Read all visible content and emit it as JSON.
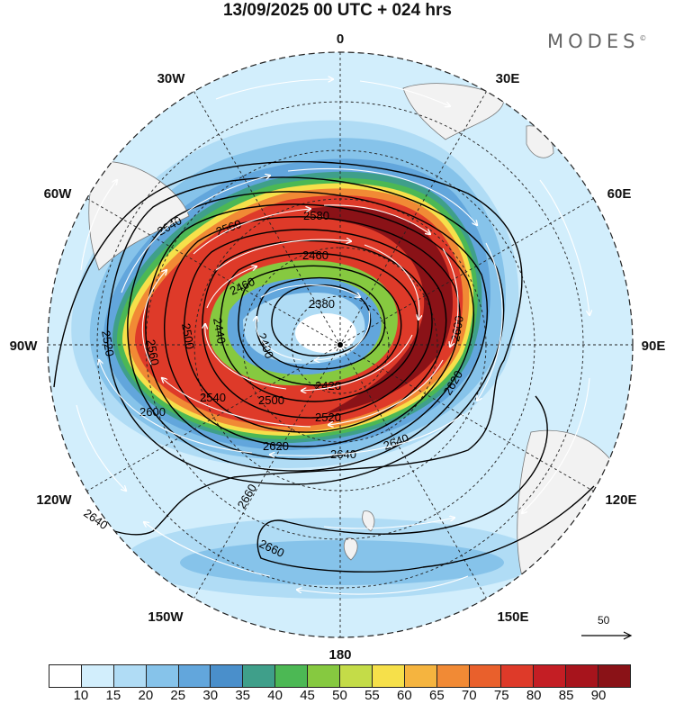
{
  "title": "13/09/2025  00 UTC  + 024 hrs",
  "brand": "MODES",
  "brand_mark": "©",
  "longitude_labels": {
    "n0": "0",
    "n30e": "30E",
    "n60e": "60E",
    "n90e": "90E",
    "n120e": "120E",
    "n150e": "150E",
    "n180": "180",
    "n150w": "150W",
    "n120w": "120W",
    "n90w": "90W",
    "n60w": "60W",
    "n30w": "30W"
  },
  "contour_labels": {
    "c2380": "2380",
    "c2400": "2400",
    "c2420": "2420",
    "c2440": "2440",
    "c2460a": "2460",
    "c2460b": "2460",
    "c2500a": "2500",
    "c2500b": "2500",
    "c2520a": "2520",
    "c2520b": "2520",
    "c2540": "2540",
    "c2560a": "2560",
    "c2560b": "2560",
    "c2580": "2580",
    "c2600a": "2600",
    "c2600b": "2600",
    "c2620a": "2620",
    "c2620b": "2620",
    "c2640a": "2640",
    "c2640b": "2640",
    "c2640c": "2640",
    "c2640d": "2640",
    "c2660a": "2660",
    "c2660b": "2660"
  },
  "reference_vector": "50",
  "colorbar": {
    "colors": [
      "#ffffff",
      "#d2eefc",
      "#b0dcf5",
      "#86c3ea",
      "#62a6dc",
      "#4a8fcb",
      "#3f9f8a",
      "#4cb854",
      "#86c940",
      "#c4dc48",
      "#f6e04a",
      "#f5b43f",
      "#f18a35",
      "#e9602c",
      "#de3a29",
      "#c41e24",
      "#a7141c",
      "#8a1217"
    ],
    "ticks": [
      "10",
      "15",
      "20",
      "25",
      "30",
      "35",
      "40",
      "45",
      "50",
      "55",
      "60",
      "65",
      "70",
      "75",
      "80",
      "85",
      "90"
    ]
  }
}
